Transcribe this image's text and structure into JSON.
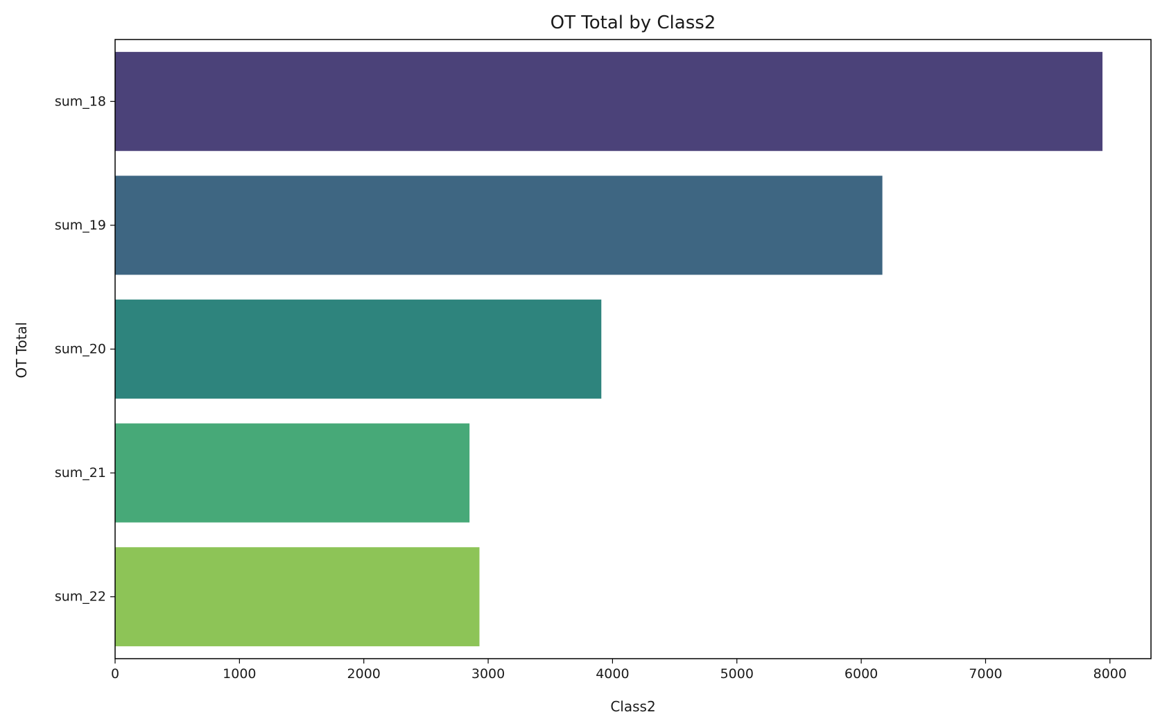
{
  "chart_data": {
    "type": "bar",
    "orientation": "horizontal",
    "title": "OT Total by Class2",
    "xlabel": "Class2",
    "ylabel": "OT Total",
    "categories": [
      "sum_18",
      "sum_19",
      "sum_20",
      "sum_21",
      "sum_22"
    ],
    "values": [
      7940,
      6170,
      3910,
      2850,
      2930
    ],
    "colors": [
      "#4b4279",
      "#3e6682",
      "#2e847d",
      "#47a978",
      "#8dc457"
    ],
    "xlim": [
      0,
      8330
    ],
    "xticks": [
      0,
      1000,
      2000,
      3000,
      4000,
      5000,
      6000,
      7000,
      8000
    ],
    "xtick_labels": [
      "0",
      "1000",
      "2000",
      "3000",
      "4000",
      "5000",
      "6000",
      "7000",
      "8000"
    ],
    "grid": false,
    "legend": "none"
  }
}
